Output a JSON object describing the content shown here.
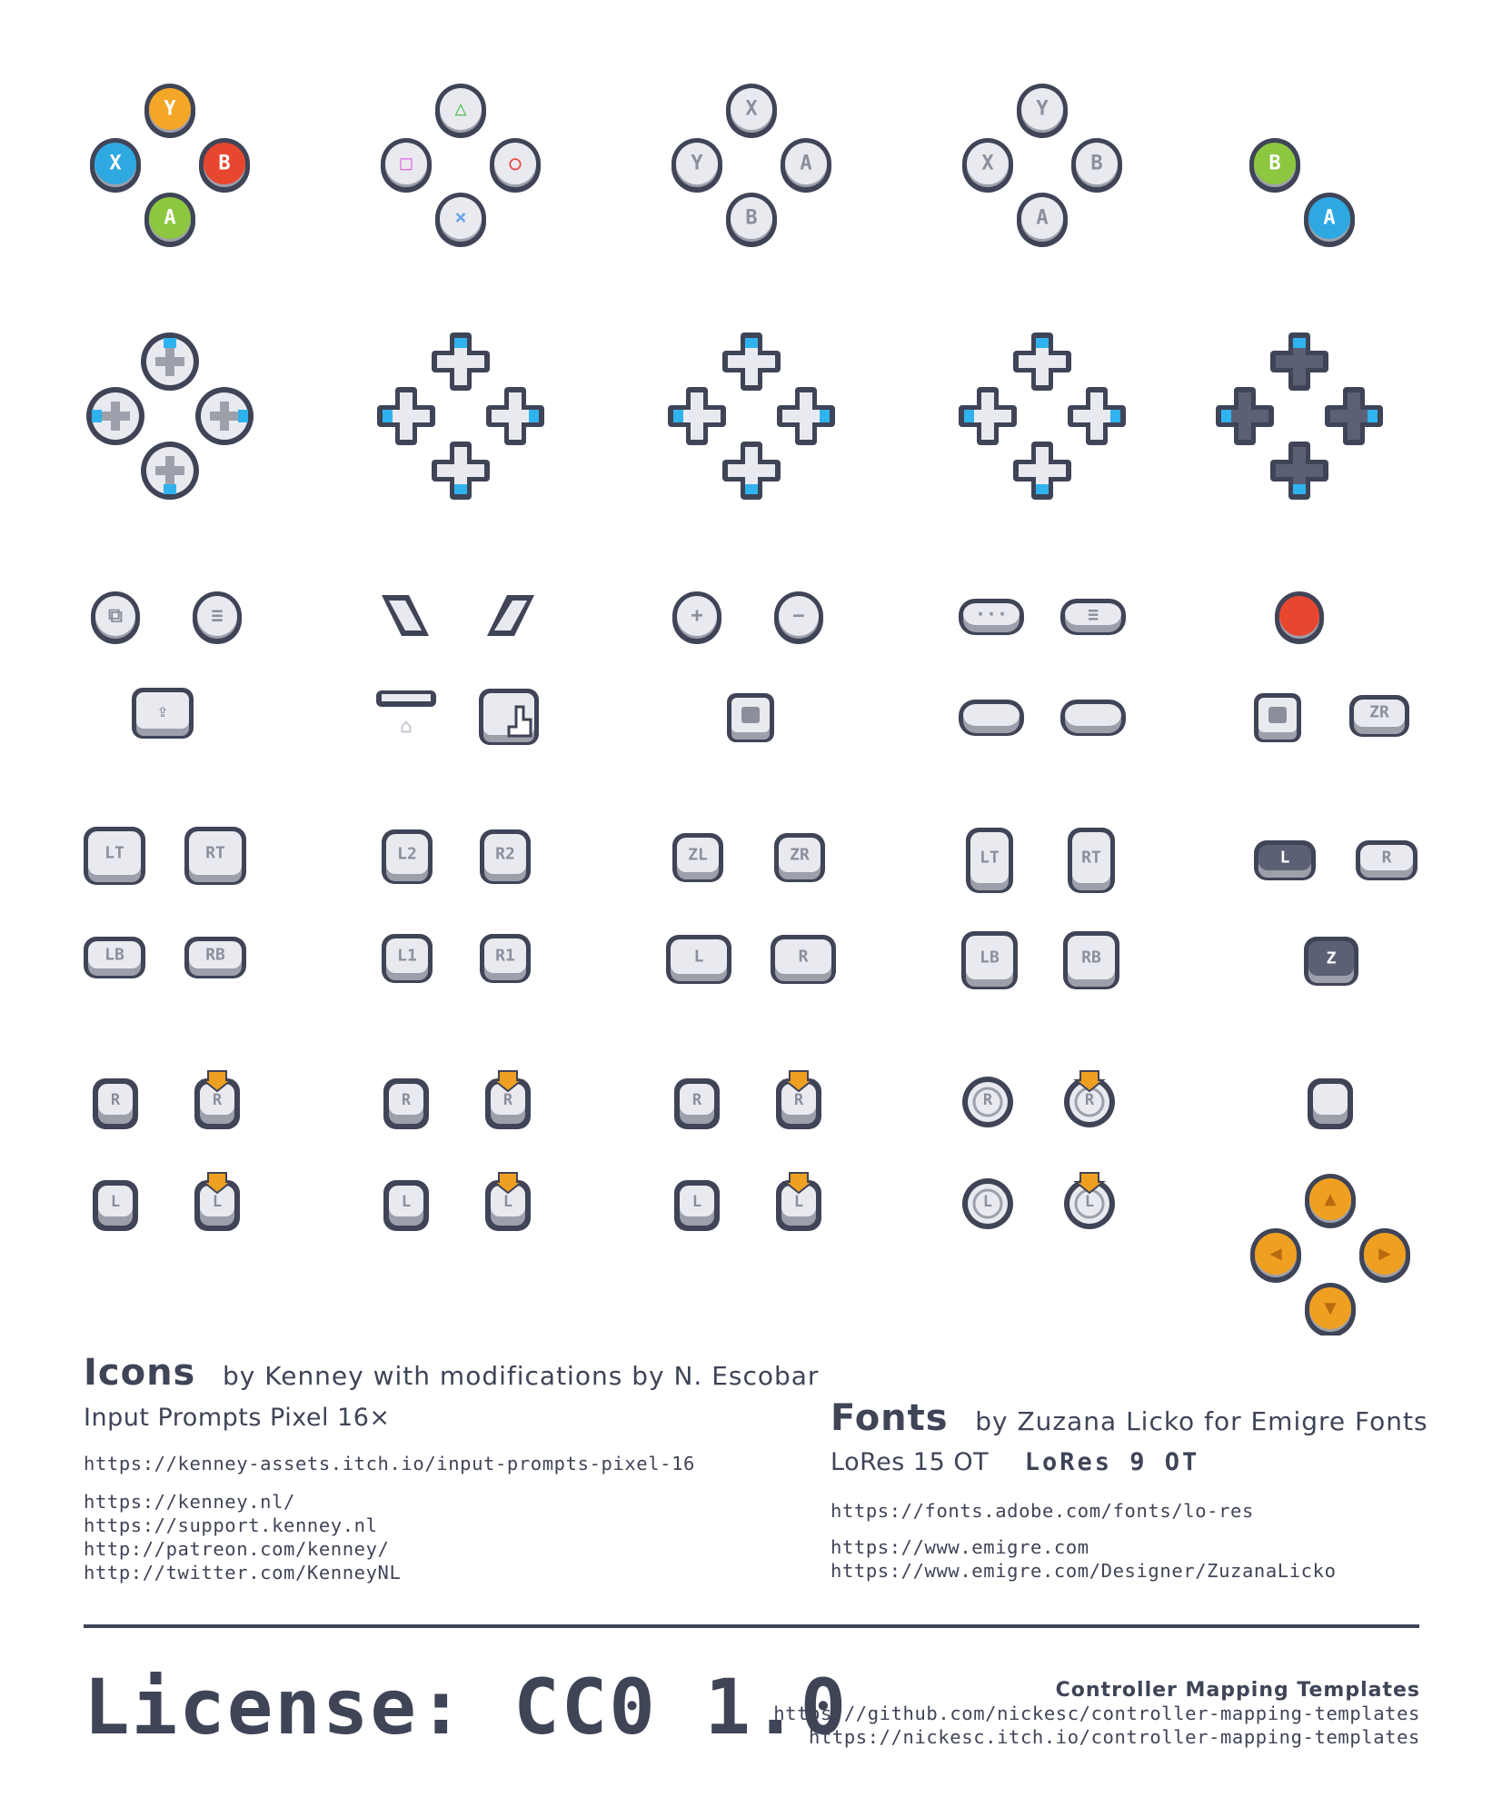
{
  "colors": {
    "outline": "#3f4457",
    "face": "#e9eaef",
    "face_dark": "#5b6074",
    "shadow": "#9da0ab",
    "label_gray": "#8b8f9c",
    "blue_accent": "#2fb3ef",
    "xbox_yellow": "#f4a627",
    "xbox_red": "#e8472f",
    "xbox_blue": "#2ea8e0",
    "xbox_green": "#8dc63f",
    "ps_green": "#4cbf4c",
    "ps_red": "#e8473f",
    "ps_pink": "#e266e0",
    "ps_blue": "#6aa4e8",
    "orange": "#f0a020",
    "record_red": "#e8472f"
  },
  "icons": {
    "face_buttons": [
      {
        "name": "xbox-face-buttons",
        "labels": {
          "top": "Y",
          "left": "X",
          "right": "B",
          "bottom": "A"
        }
      },
      {
        "name": "playstation-face-buttons",
        "labels": {
          "top": "△",
          "left": "□",
          "right": "○",
          "bottom": "×"
        }
      },
      {
        "name": "nintendo-face-buttons",
        "labels": {
          "top": "X",
          "left": "Y",
          "right": "A",
          "bottom": "B"
        }
      },
      {
        "name": "generic-face-buttons",
        "labels": {
          "top": "Y",
          "left": "X",
          "right": "B",
          "bottom": "A"
        }
      },
      {
        "name": "two-button-set",
        "labels": {
          "b": "B",
          "a": "A"
        }
      }
    ],
    "shoulder_labels": {
      "xbox": [
        "LT",
        "RT",
        "LB",
        "RB"
      ],
      "ps": [
        "L2",
        "R2",
        "L1",
        "R1"
      ],
      "switch": [
        "ZL",
        "ZR",
        "L",
        "R"
      ],
      "generic": [
        "LT",
        "RT",
        "LB",
        "RB"
      ],
      "gamecube": [
        "L",
        "R",
        "Z"
      ],
      "zr_small": "ZR"
    },
    "stick_labels": {
      "right": "R",
      "left": "L"
    }
  },
  "credits": {
    "icons": {
      "title": "Icons",
      "by": "by Kenney with modifications by N. Escobar",
      "pack": "Input Prompts Pixel 16×",
      "pack_url": "https://kenney-assets.itch.io/input-prompts-pixel-16",
      "links": [
        "https://kenney.nl/",
        "https://support.kenney.nl",
        "http://patreon.com/kenney/",
        "http://twitter.com/KenneyNL"
      ]
    },
    "fonts": {
      "title": "Fonts",
      "by": "by Zuzana Licko for Emigre Fonts",
      "font_a": "LoRes 15 OT",
      "font_b": "LoRes 9 OT",
      "font_url": "https://fonts.adobe.com/fonts/lo-res",
      "links": [
        "https://www.emigre.com",
        "https://www.emigre.com/Designer/ZuzanaLicko"
      ]
    }
  },
  "license": "License: CC0 1.0",
  "templates": {
    "title": "Controller Mapping Templates",
    "links": [
      "https://github.com/nickesc/controller-mapping-templates",
      "https://nickesc.itch.io/controller-mapping-templates"
    ]
  }
}
